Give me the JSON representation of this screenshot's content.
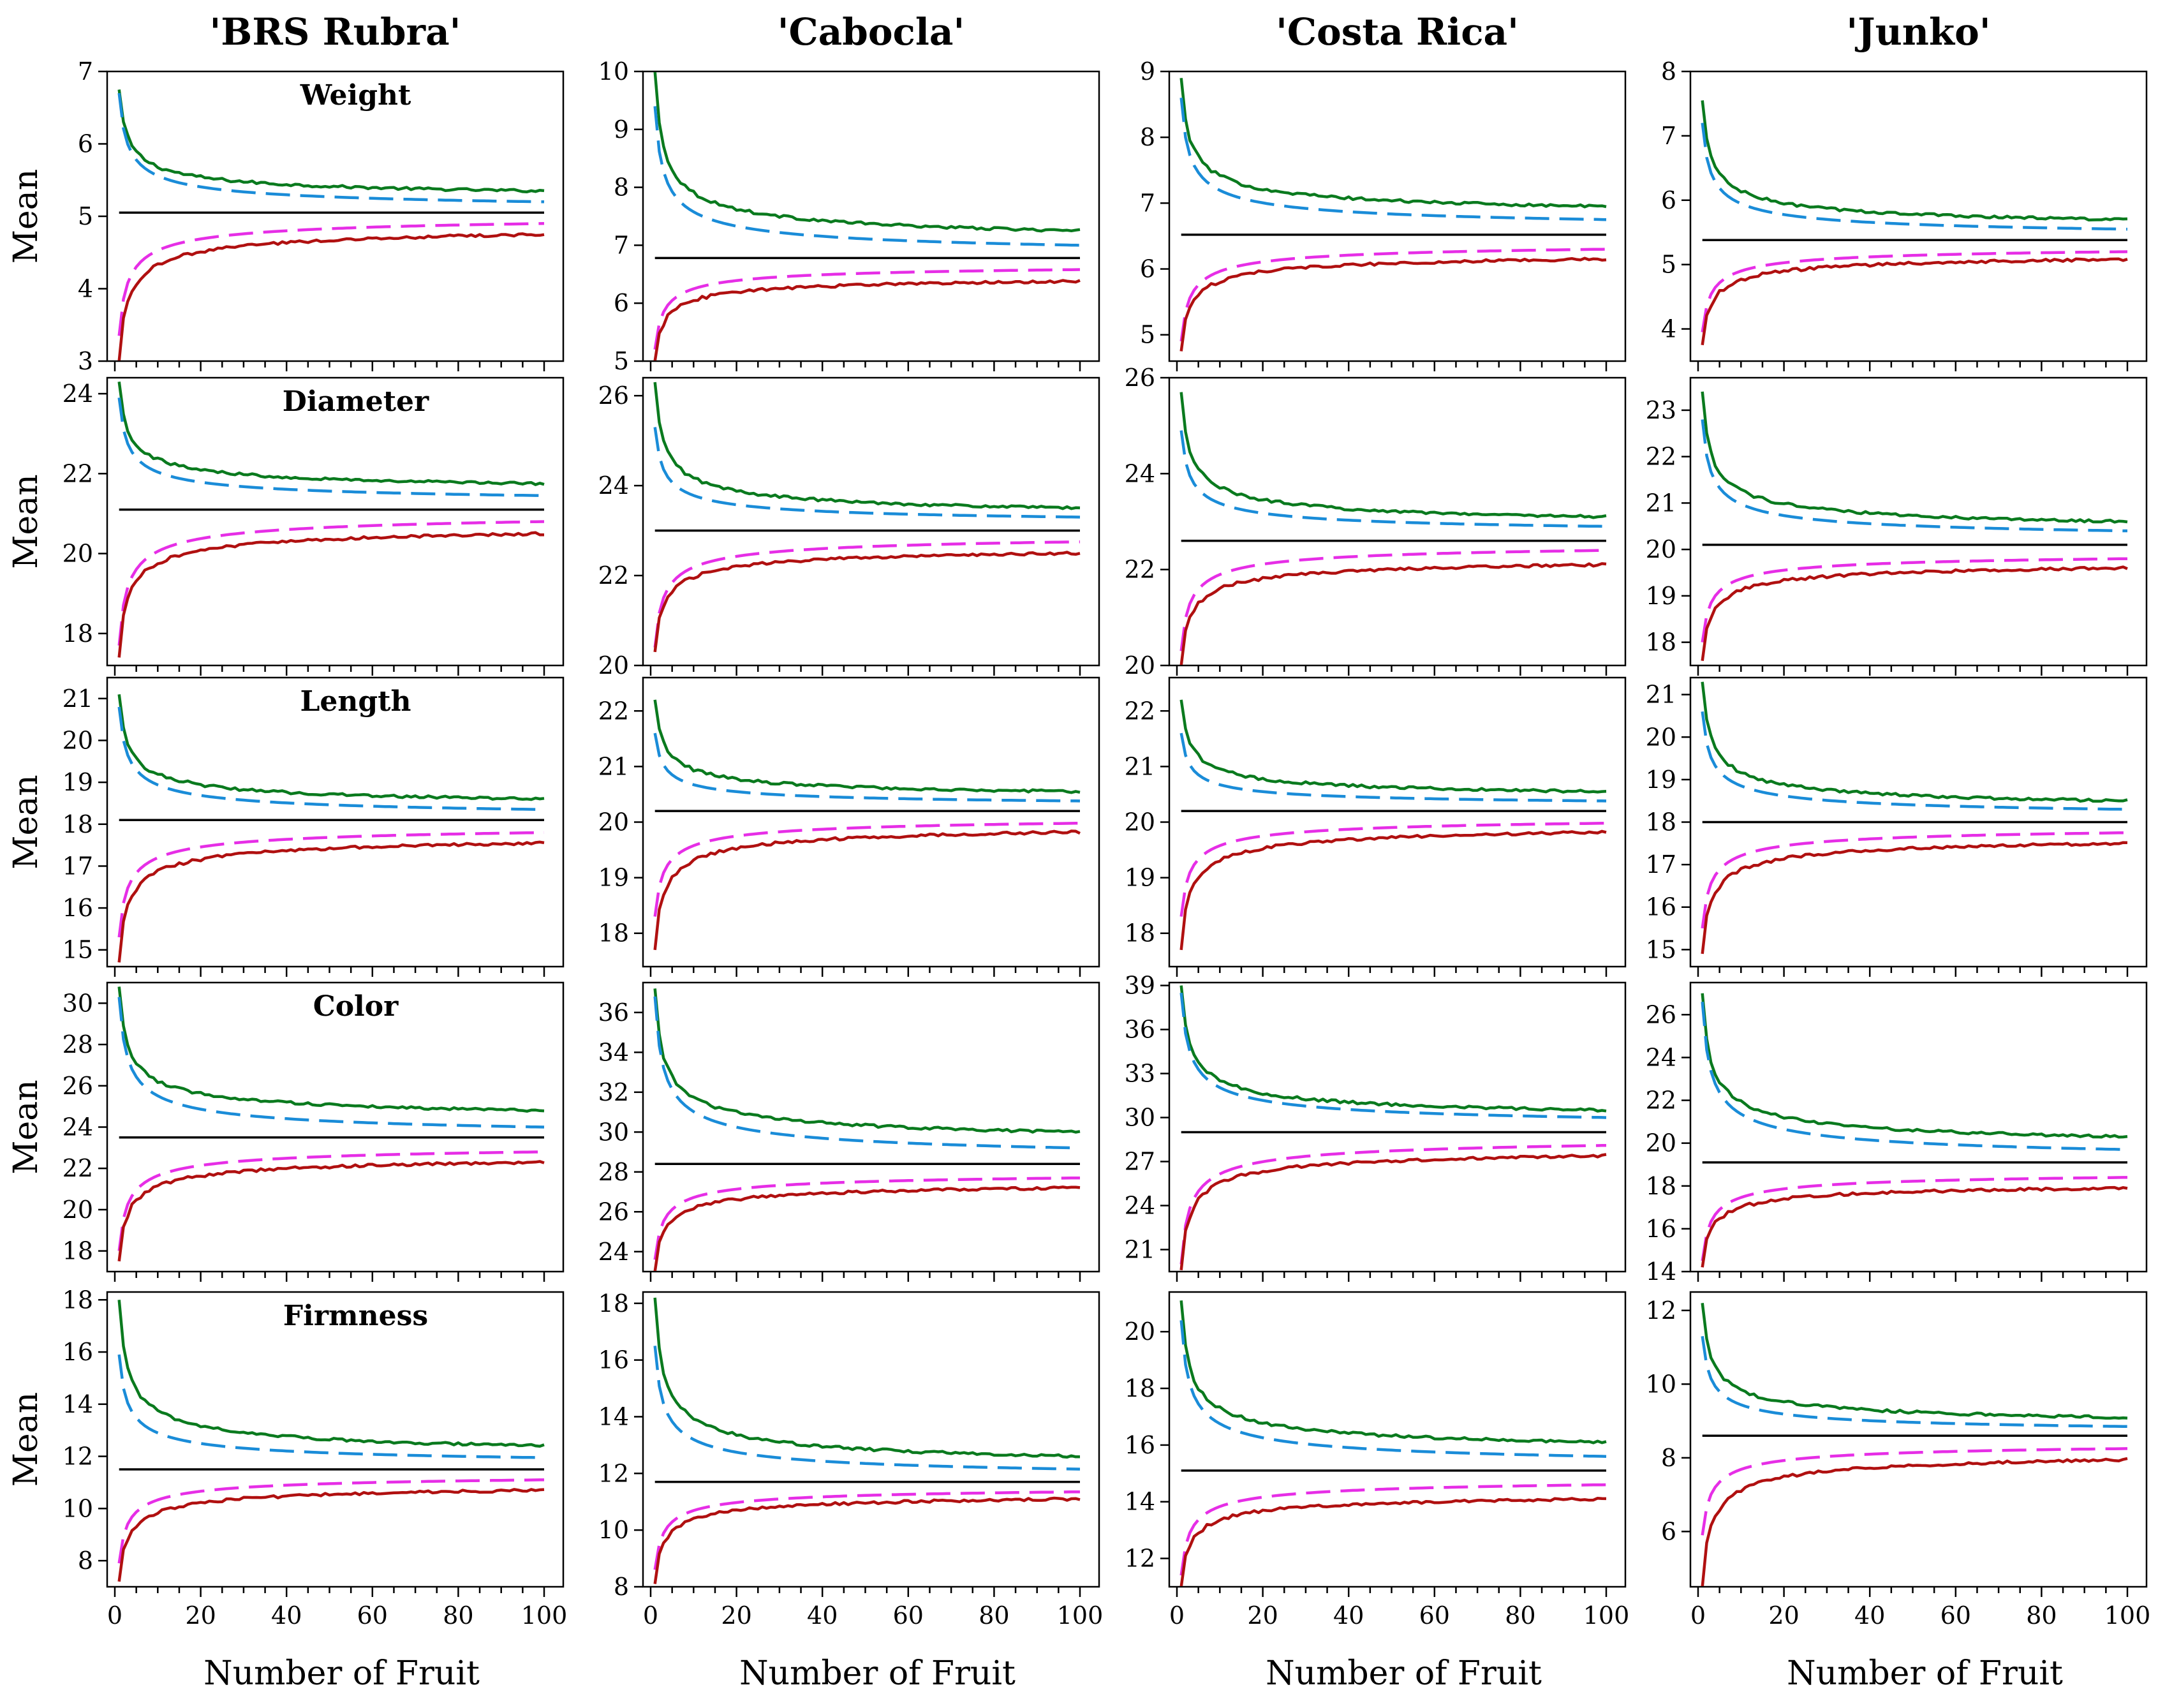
{
  "chart_data": {
    "type": "line",
    "xlabel": "Number of Fruit",
    "ylabel": "Mean",
    "x_range": [
      1,
      100
    ],
    "xticks": [
      0,
      20,
      40,
      60,
      80,
      100
    ],
    "columns": [
      "'BRS Rubra'",
      "'Cabocla'",
      "'Costa Rica'",
      "'Junko'"
    ],
    "rows": [
      "Weight",
      "Diameter",
      "Length",
      "Color",
      "Firmness"
    ],
    "series_styles": [
      {
        "key": "upper_ci",
        "color": "#0a7a1e",
        "dash": "solid"
      },
      {
        "key": "upper_mean",
        "color": "#1a8cd8",
        "dash": "dashed"
      },
      {
        "key": "population_mean",
        "color": "#000000",
        "dash": "solid"
      },
      {
        "key": "lower_mean",
        "color": "#e62ee6",
        "dash": "dashed"
      },
      {
        "key": "lower_ci",
        "color": "#b01010",
        "dash": "solid"
      }
    ],
    "panels": [
      {
        "col": 0,
        "row": 0,
        "trait": "Weight",
        "ylim": [
          3,
          7
        ],
        "yticks": [
          3,
          4,
          5,
          6,
          7
        ],
        "mean": 5.05,
        "upper_ci": [
          6.75,
          5.35
        ],
        "upper_mean": [
          6.7,
          5.2
        ],
        "lower_mean": [
          3.35,
          4.9
        ],
        "lower_ci": [
          3.0,
          4.75
        ]
      },
      {
        "col": 1,
        "row": 0,
        "ylim": [
          5,
          10
        ],
        "yticks": [
          5,
          6,
          7,
          8,
          9,
          10
        ],
        "mean": 6.78,
        "upper_ci": [
          10.0,
          7.25
        ],
        "upper_mean": [
          9.4,
          7.0
        ],
        "lower_mean": [
          5.2,
          6.58
        ],
        "lower_ci": [
          5.0,
          6.38
        ]
      },
      {
        "col": 2,
        "row": 0,
        "ylim": [
          4.6,
          9
        ],
        "yticks": [
          5,
          6,
          7,
          8,
          9
        ],
        "mean": 6.52,
        "upper_ci": [
          8.9,
          6.95
        ],
        "upper_mean": [
          8.6,
          6.75
        ],
        "lower_mean": [
          4.9,
          6.3
        ],
        "lower_ci": [
          4.75,
          6.15
        ]
      },
      {
        "col": 3,
        "row": 0,
        "ylim": [
          3.5,
          8
        ],
        "yticks": [
          4,
          5,
          6,
          7,
          8
        ],
        "mean": 5.38,
        "upper_ci": [
          7.55,
          5.7
        ],
        "upper_mean": [
          7.2,
          5.55
        ],
        "lower_mean": [
          3.95,
          5.2
        ],
        "lower_ci": [
          3.75,
          5.08
        ]
      },
      {
        "col": 0,
        "row": 1,
        "trait": "Diameter",
        "ylim": [
          17.2,
          24.4
        ],
        "yticks": [
          18,
          20,
          22,
          24
        ],
        "mean": 21.1,
        "upper_ci": [
          24.3,
          21.75
        ],
        "upper_mean": [
          23.9,
          21.45
        ],
        "lower_mean": [
          17.7,
          20.8
        ],
        "lower_ci": [
          17.4,
          20.5
        ]
      },
      {
        "col": 1,
        "row": 1,
        "ylim": [
          20,
          26.4
        ],
        "yticks": [
          20,
          22,
          24,
          26
        ],
        "mean": 23.0,
        "upper_ci": [
          26.3,
          23.5
        ],
        "upper_mean": [
          25.3,
          23.3
        ],
        "lower_mean": [
          20.4,
          22.75
        ],
        "lower_ci": [
          20.3,
          22.5
        ]
      },
      {
        "col": 2,
        "row": 1,
        "ylim": [
          20,
          26
        ],
        "yticks": [
          20,
          22,
          24,
          26
        ],
        "mean": 22.6,
        "upper_ci": [
          25.7,
          23.1
        ],
        "upper_mean": [
          24.9,
          22.9
        ],
        "lower_mean": [
          20.3,
          22.4
        ],
        "lower_ci": [
          20.0,
          22.1
        ]
      },
      {
        "col": 3,
        "row": 1,
        "ylim": [
          17.5,
          23.7
        ],
        "yticks": [
          18,
          19,
          20,
          21,
          22,
          23
        ],
        "mean": 20.1,
        "upper_ci": [
          23.4,
          20.6
        ],
        "upper_mean": [
          22.8,
          20.4
        ],
        "lower_mean": [
          18.0,
          19.8
        ],
        "lower_ci": [
          17.6,
          19.6
        ]
      },
      {
        "col": 0,
        "row": 2,
        "trait": "Length",
        "ylim": [
          14.6,
          21.5
        ],
        "yticks": [
          15,
          16,
          17,
          18,
          19,
          20,
          21
        ],
        "mean": 18.1,
        "upper_ci": [
          21.1,
          18.6
        ],
        "upper_mean": [
          20.8,
          18.35
        ],
        "lower_mean": [
          15.3,
          17.8
        ],
        "lower_ci": [
          14.7,
          17.55
        ]
      },
      {
        "col": 1,
        "row": 2,
        "ylim": [
          17.4,
          22.6
        ],
        "yticks": [
          18,
          19,
          20,
          21,
          22
        ],
        "mean": 20.2,
        "upper_ci": [
          22.2,
          20.55
        ],
        "upper_mean": [
          21.6,
          20.38
        ],
        "lower_mean": [
          18.3,
          19.98
        ],
        "lower_ci": [
          17.7,
          19.82
        ]
      },
      {
        "col": 2,
        "row": 2,
        "ylim": [
          17.4,
          22.6
        ],
        "yticks": [
          18,
          19,
          20,
          21,
          22
        ],
        "mean": 20.2,
        "upper_ci": [
          22.2,
          20.55
        ],
        "upper_mean": [
          21.6,
          20.38
        ],
        "lower_mean": [
          18.3,
          19.98
        ],
        "lower_ci": [
          17.7,
          19.82
        ]
      },
      {
        "col": 3,
        "row": 2,
        "ylim": [
          14.6,
          21.4
        ],
        "yticks": [
          15,
          16,
          17,
          18,
          19,
          20,
          21
        ],
        "mean": 18.0,
        "upper_ci": [
          21.3,
          18.5
        ],
        "upper_mean": [
          20.6,
          18.3
        ],
        "lower_mean": [
          15.5,
          17.75
        ],
        "lower_ci": [
          14.9,
          17.5
        ]
      },
      {
        "col": 0,
        "row": 3,
        "trait": "Color",
        "ylim": [
          17,
          31
        ],
        "yticks": [
          18,
          20,
          22,
          24,
          26,
          28,
          30
        ],
        "mean": 23.5,
        "upper_ci": [
          30.8,
          24.8
        ],
        "upper_mean": [
          30.3,
          24.0
        ],
        "lower_mean": [
          18.0,
          22.8
        ],
        "lower_ci": [
          17.5,
          22.3
        ]
      },
      {
        "col": 1,
        "row": 3,
        "ylim": [
          23,
          37.5
        ],
        "yticks": [
          24,
          26,
          28,
          30,
          32,
          34,
          36
        ],
        "mean": 28.4,
        "upper_ci": [
          37.2,
          30.0
        ],
        "upper_mean": [
          36.8,
          29.2
        ],
        "lower_mean": [
          23.6,
          27.7
        ],
        "lower_ci": [
          23.0,
          27.2
        ]
      },
      {
        "col": 2,
        "row": 3,
        "ylim": [
          19.5,
          39.2
        ],
        "yticks": [
          21,
          24,
          27,
          30,
          33,
          36,
          39
        ],
        "mean": 29.0,
        "upper_ci": [
          39.0,
          30.5
        ],
        "upper_mean": [
          38.5,
          30.0
        ],
        "lower_mean": [
          20.0,
          28.1
        ],
        "lower_ci": [
          19.6,
          27.4
        ]
      },
      {
        "col": 3,
        "row": 3,
        "ylim": [
          14,
          27.5
        ],
        "yticks": [
          14,
          16,
          18,
          20,
          22,
          24,
          26
        ],
        "mean": 19.1,
        "upper_ci": [
          27.0,
          20.3
        ],
        "upper_mean": [
          26.6,
          19.7
        ],
        "lower_mean": [
          14.5,
          18.4
        ],
        "lower_ci": [
          14.2,
          17.9
        ]
      },
      {
        "col": 0,
        "row": 4,
        "trait": "Firmness",
        "ylim": [
          7,
          18.3
        ],
        "yticks": [
          8,
          10,
          12,
          14,
          16,
          18
        ],
        "mean": 11.5,
        "upper_ci": [
          18.0,
          12.4
        ],
        "upper_mean": [
          15.9,
          11.95
        ],
        "lower_mean": [
          7.9,
          11.1
        ],
        "lower_ci": [
          7.2,
          10.7
        ]
      },
      {
        "col": 1,
        "row": 4,
        "ylim": [
          8,
          18.4
        ],
        "yticks": [
          8,
          10,
          12,
          14,
          16,
          18
        ],
        "mean": 11.7,
        "upper_ci": [
          18.2,
          12.6
        ],
        "upper_mean": [
          16.5,
          12.15
        ],
        "lower_mean": [
          8.6,
          11.35
        ],
        "lower_ci": [
          8.1,
          11.1
        ]
      },
      {
        "col": 2,
        "row": 4,
        "ylim": [
          11,
          21.4
        ],
        "yticks": [
          12,
          14,
          16,
          18,
          20
        ],
        "mean": 15.1,
        "upper_ci": [
          21.1,
          16.1
        ],
        "upper_mean": [
          20.4,
          15.6
        ],
        "lower_mean": [
          11.4,
          14.6
        ],
        "lower_ci": [
          11.0,
          14.1
        ]
      },
      {
        "col": 3,
        "row": 4,
        "ylim": [
          4.5,
          12.5
        ],
        "yticks": [
          6,
          8,
          10,
          12
        ],
        "mean": 8.6,
        "upper_ci": [
          12.2,
          9.1
        ],
        "upper_mean": [
          11.3,
          8.85
        ],
        "lower_mean": [
          5.9,
          8.25
        ],
        "lower_ci": [
          4.5,
          7.95
        ]
      }
    ]
  }
}
